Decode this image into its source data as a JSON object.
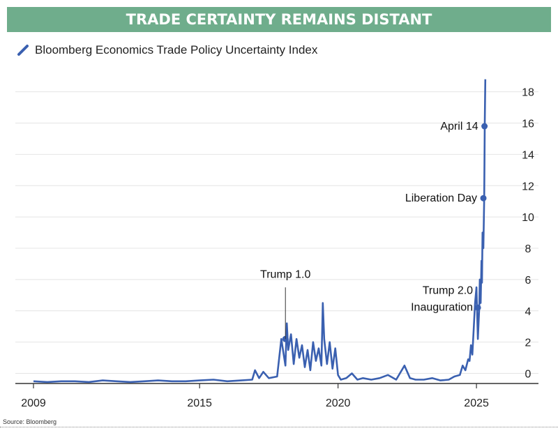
{
  "banner": {
    "title": "TRADE CERTAINTY REMAINS DISTANT"
  },
  "source": "Source: Bloomberg",
  "chart_data": {
    "type": "line",
    "title": "",
    "xlabel": "",
    "ylabel": "",
    "xlim": [
      2009,
      2026.2
    ],
    "ylim": [
      -0.6,
      19.5
    ],
    "x_ticks": [
      2009,
      2015,
      2020,
      2025
    ],
    "y_ticks": [
      0,
      2,
      4,
      6,
      8,
      10,
      12,
      14,
      16,
      18
    ],
    "grid": "horizontal",
    "y_axis_side": "right",
    "line_color": "#3a60b0",
    "series": [
      {
        "name": "Bloomberg Economics Trade Policy Uncertainty Index",
        "x": [
          2009.0,
          2009.5,
          2010.0,
          2010.5,
          2011.0,
          2011.5,
          2012.0,
          2012.5,
          2013.0,
          2013.5,
          2014.0,
          2014.5,
          2015.0,
          2015.5,
          2016.0,
          2016.5,
          2016.9,
          2017.0,
          2017.15,
          2017.3,
          2017.5,
          2017.8,
          2017.95,
          2018.1,
          2018.15,
          2018.2,
          2018.3,
          2018.4,
          2018.5,
          2018.6,
          2018.7,
          2018.8,
          2018.9,
          2019.0,
          2019.1,
          2019.2,
          2019.3,
          2019.4,
          2019.45,
          2019.5,
          2019.6,
          2019.7,
          2019.8,
          2019.9,
          2020.0,
          2020.1,
          2020.3,
          2020.5,
          2020.7,
          2020.9,
          2021.2,
          2021.5,
          2021.8,
          2022.1,
          2022.4,
          2022.6,
          2022.8,
          2023.1,
          2023.4,
          2023.7,
          2024.0,
          2024.2,
          2024.4,
          2024.5,
          2024.6,
          2024.7,
          2024.75,
          2024.8,
          2024.85,
          2024.9,
          2024.95,
          2025.0,
          2025.05,
          2025.1,
          2025.12,
          2025.15,
          2025.18,
          2025.2,
          2025.22,
          2025.25,
          2025.28,
          2025.29,
          2025.3,
          2025.32
        ],
        "values": [
          -0.5,
          -0.55,
          -0.5,
          -0.5,
          -0.55,
          -0.45,
          -0.5,
          -0.55,
          -0.5,
          -0.45,
          -0.5,
          -0.5,
          -0.45,
          -0.4,
          -0.5,
          -0.45,
          -0.4,
          0.2,
          -0.3,
          0.1,
          -0.3,
          -0.2,
          2.2,
          0.5,
          3.2,
          1.5,
          2.5,
          0.6,
          2.2,
          1.0,
          1.8,
          0.4,
          1.5,
          0.2,
          2.0,
          0.8,
          1.6,
          0.5,
          4.5,
          2.2,
          0.6,
          2.0,
          0.3,
          1.6,
          -0.1,
          -0.4,
          -0.3,
          0.0,
          -0.4,
          -0.3,
          -0.4,
          -0.3,
          -0.1,
          -0.4,
          0.5,
          -0.3,
          -0.4,
          -0.4,
          -0.3,
          -0.45,
          -0.4,
          -0.2,
          -0.1,
          0.5,
          0.2,
          0.9,
          0.8,
          1.8,
          1.2,
          2.8,
          4.5,
          5.5,
          2.2,
          4.2,
          6.0,
          4.5,
          7.2,
          5.8,
          9.0,
          8.0,
          11.2,
          13.5,
          16.0,
          18.8
        ]
      }
    ],
    "annotations": [
      {
        "label": "Trump 1.0",
        "x": 2018.1,
        "y": 2.2
      },
      {
        "label": "Trump 2.0",
        "label2": "Inauguration",
        "x": 2025.05,
        "y": 4.2
      },
      {
        "label": "Liberation Day",
        "x": 2025.25,
        "y": 11.2
      },
      {
        "label": "April 14",
        "x": 2025.29,
        "y": 15.8
      }
    ]
  }
}
